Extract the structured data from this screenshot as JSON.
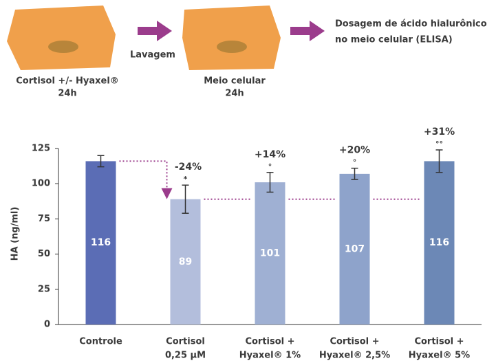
{
  "workflow": {
    "steps": [
      {
        "label": "Cortisol +/- Hyaxel®",
        "sublabel": "24h"
      },
      {
        "label": "Meio celular",
        "sublabel": "24h"
      }
    ],
    "arrow_label": "Lavagem",
    "final": [
      "Dosagem de ácido hialurônico",
      "no meio celular (ELISA)"
    ]
  },
  "chart_data": {
    "type": "bar",
    "y_label": "HA (ng/ml)",
    "categories": [
      [
        "Controle"
      ],
      [
        "Cortisol",
        "0,25 µM"
      ],
      [
        "Cortisol +",
        "Hyaxel® 1%"
      ],
      [
        "Cortisol +",
        "Hyaxel® 2,5%"
      ],
      [
        "Cortisol +",
        "Hyaxel® 5%"
      ]
    ],
    "values": [
      116,
      89,
      101,
      107,
      116
    ],
    "errors": [
      4,
      10,
      7,
      4,
      8
    ],
    "colors": [
      "#5b6db5",
      "#b3bedc",
      "#9fb0d3",
      "#8ea3cb",
      "#6c88b6"
    ],
    "changes": [
      null,
      "-24%",
      "+14%",
      "+20%",
      "+31%"
    ],
    "significance": [
      null,
      "*",
      "°",
      "°",
      "°°"
    ],
    "ylim": [
      0,
      125
    ],
    "yticks": [
      0,
      25,
      50,
      75,
      100,
      125
    ]
  }
}
